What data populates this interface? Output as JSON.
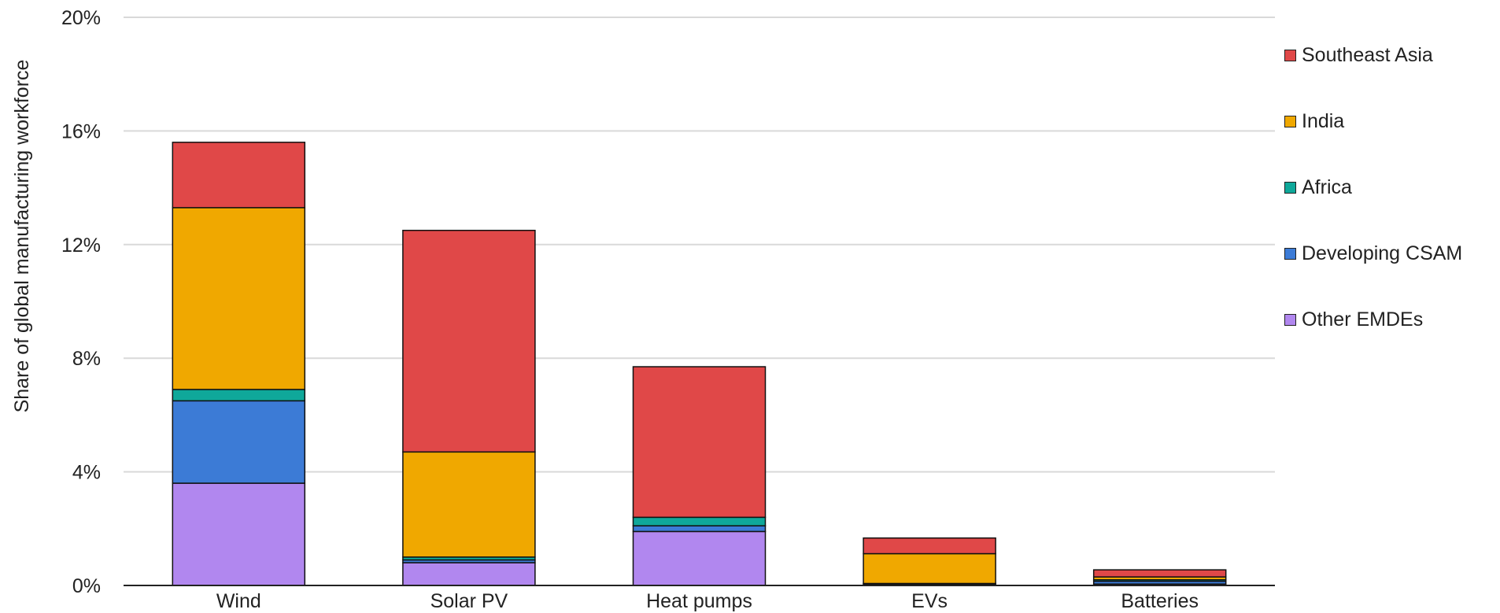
{
  "chart_data": {
    "type": "bar",
    "stacked": true,
    "title": "",
    "xlabel": "",
    "ylabel": "Share of global manufacturing workforce",
    "ylim": [
      0,
      20
    ],
    "yticks": [
      0,
      4,
      8,
      12,
      16,
      20
    ],
    "ytick_labels": [
      "0%",
      "4%",
      "8%",
      "12%",
      "16%",
      "20%"
    ],
    "categories": [
      "Wind",
      "Solar PV",
      "Heat pumps",
      "EVs",
      "Batteries"
    ],
    "series": [
      {
        "name": "Other EMDEs",
        "color": "#b187ef",
        "values": [
          3.6,
          0.8,
          1.9,
          0.0,
          0.05
        ]
      },
      {
        "name": "Developing CSAM",
        "color": "#3c7bd6",
        "values": [
          2.9,
          0.1,
          0.2,
          0.05,
          0.1
        ]
      },
      {
        "name": "Africa",
        "color": "#0fa89a",
        "values": [
          0.4,
          0.1,
          0.3,
          0.02,
          0.05
        ]
      },
      {
        "name": "India",
        "color": "#f0a800",
        "values": [
          6.4,
          3.7,
          0.0,
          1.05,
          0.1
        ]
      },
      {
        "name": "Southeast Asia",
        "color": "#e04848",
        "values": [
          2.3,
          7.8,
          5.3,
          0.55,
          0.25
        ]
      }
    ],
    "grid": true,
    "legend_position": "right"
  },
  "legend": {
    "items": [
      {
        "label": "Southeast Asia",
        "color": "#e04848"
      },
      {
        "label": "India",
        "color": "#f0a800"
      },
      {
        "label": "Africa",
        "color": "#0fa89a"
      },
      {
        "label": "Developing CSAM",
        "color": "#3c7bd6"
      },
      {
        "label": "Other EMDEs",
        "color": "#b187ef"
      }
    ]
  }
}
